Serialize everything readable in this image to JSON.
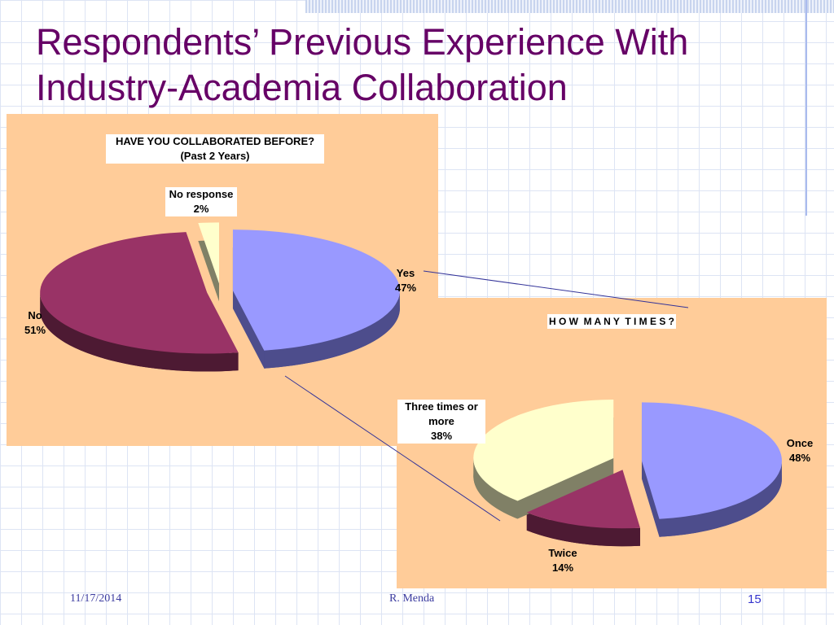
{
  "slide": {
    "title": "Respondents’ Previous Experience With Industry-Academia Collaboration",
    "date": "11/17/2014",
    "author": "R. Menda",
    "page": 15
  },
  "chart_data": [
    {
      "type": "pie",
      "title": "HAVE YOU COLLABORATED BEFORE?",
      "subtitle": "(Past 2 Years)",
      "categories": [
        "Yes",
        "No",
        "No response"
      ],
      "values": [
        47,
        51,
        2
      ],
      "value_labels": [
        "47%",
        "51%",
        "2%"
      ],
      "colors": [
        "#9999ff",
        "#993366",
        "#ffffcc"
      ],
      "side_colors": [
        "#4d4d8c",
        "#4d1a33",
        "#808066"
      ]
    },
    {
      "type": "pie",
      "title": "H O W  M A N Y  T I M E S ?",
      "categories": [
        "Once",
        "Twice",
        "Three times or more"
      ],
      "values": [
        48,
        14,
        38
      ],
      "value_labels": [
        "48%",
        "14%",
        "38%"
      ],
      "colors": [
        "#9999ff",
        "#993366",
        "#ffffcc"
      ],
      "side_colors": [
        "#4d4d8c",
        "#4d1a33",
        "#808066"
      ]
    }
  ]
}
